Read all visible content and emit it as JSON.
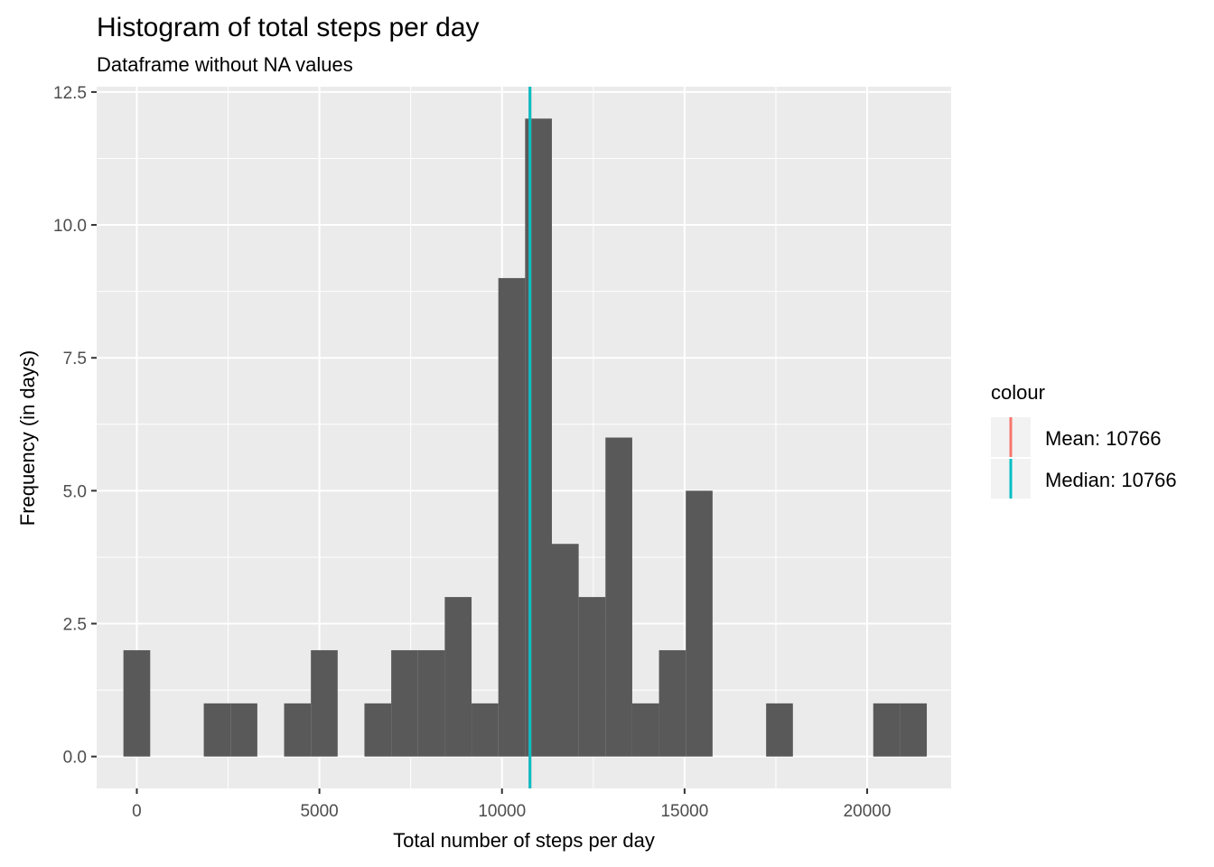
{
  "chart_data": {
    "type": "bar",
    "subtype": "histogram",
    "title": "Histogram of total steps per day",
    "subtitle": "Dataframe without NA values",
    "xlabel": "Total number of steps per day",
    "ylabel": "Frequency (in days)",
    "xlim": [
      -1100,
      22300
    ],
    "ylim": [
      -0.6,
      12.6
    ],
    "x_ticks": [
      0,
      5000,
      10000,
      15000,
      20000
    ],
    "x_tick_labels": [
      "0",
      "5000",
      "10000",
      "15000",
      "20000"
    ],
    "y_ticks": [
      0,
      2.5,
      5,
      7.5,
      10,
      12.5
    ],
    "y_tick_labels": [
      "0.0",
      "2.5",
      "5.0",
      "7.5",
      "10.0",
      "12.5"
    ],
    "grid": true,
    "bin_width": 733.33,
    "bins": [
      {
        "center": 0,
        "count": 2
      },
      {
        "center": 733.33,
        "count": 0
      },
      {
        "center": 1466.67,
        "count": 0
      },
      {
        "center": 2200,
        "count": 1
      },
      {
        "center": 2933.33,
        "count": 1
      },
      {
        "center": 3666.67,
        "count": 0
      },
      {
        "center": 4400,
        "count": 1
      },
      {
        "center": 5133.33,
        "count": 2
      },
      {
        "center": 5866.67,
        "count": 0
      },
      {
        "center": 6600,
        "count": 1
      },
      {
        "center": 7333.33,
        "count": 2
      },
      {
        "center": 8066.67,
        "count": 2
      },
      {
        "center": 8800,
        "count": 3
      },
      {
        "center": 9533.33,
        "count": 1
      },
      {
        "center": 10266.67,
        "count": 9
      },
      {
        "center": 11000,
        "count": 12
      },
      {
        "center": 11733.33,
        "count": 4
      },
      {
        "center": 12466.67,
        "count": 3
      },
      {
        "center": 13200,
        "count": 6
      },
      {
        "center": 13933.33,
        "count": 1
      },
      {
        "center": 14666.67,
        "count": 2
      },
      {
        "center": 15400,
        "count": 5
      },
      {
        "center": 16133.33,
        "count": 0
      },
      {
        "center": 16866.67,
        "count": 0
      },
      {
        "center": 17600,
        "count": 1
      },
      {
        "center": 18333.33,
        "count": 0
      },
      {
        "center": 19066.67,
        "count": 0
      },
      {
        "center": 19800,
        "count": 0
      },
      {
        "center": 20533.33,
        "count": 1
      },
      {
        "center": 21266.67,
        "count": 1
      }
    ],
    "bar_color": "#595959",
    "vlines": [
      {
        "name": "Mean: 10766",
        "x": 10766,
        "color": "#f8766d"
      },
      {
        "name": "Median: 10766",
        "x": 10766,
        "color": "#00bfc4"
      }
    ],
    "legend": {
      "title": "colour",
      "placement": "right",
      "entries": [
        {
          "label": "Mean: 10766",
          "color": "#f8766d"
        },
        {
          "label": "Median: 10766",
          "color": "#00bfc4"
        }
      ]
    }
  }
}
